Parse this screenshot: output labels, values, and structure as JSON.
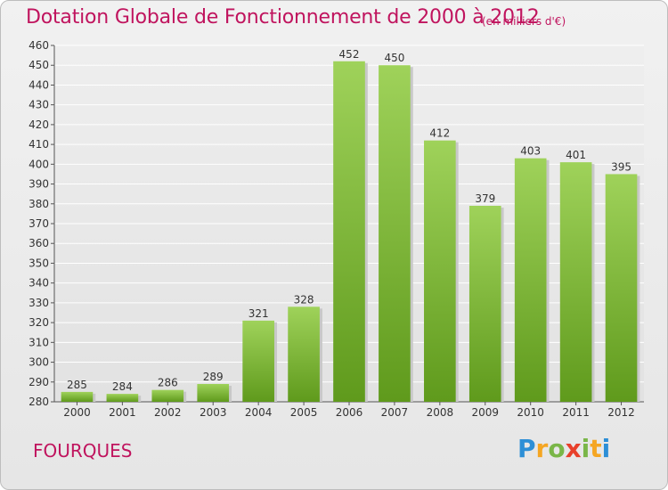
{
  "header": {
    "title": "Dotation Globale de Fonctionnement de 2000 à 2012",
    "subtitle": "(en milliers d'€)"
  },
  "footer": {
    "commune": "FOURQUES",
    "logo": "Proxiti"
  },
  "chart_data": {
    "type": "bar",
    "title": "Dotation Globale de Fonctionnement de 2000 à 2012",
    "subtitle": "(en milliers d'€)",
    "xlabel": "",
    "ylabel": "",
    "categories": [
      "2000",
      "2001",
      "2002",
      "2003",
      "2004",
      "2005",
      "2006",
      "2007",
      "2008",
      "2009",
      "2010",
      "2011",
      "2012"
    ],
    "values": [
      285,
      284,
      286,
      289,
      321,
      328,
      452,
      450,
      412,
      379,
      403,
      401,
      395
    ],
    "ylim": [
      280,
      460
    ],
    "yticks": [
      280,
      290,
      300,
      310,
      320,
      330,
      340,
      350,
      360,
      370,
      380,
      390,
      400,
      410,
      420,
      430,
      440,
      450,
      460
    ],
    "grid": true,
    "legend": "none",
    "colors": {
      "bar_top": "#9fd25a",
      "bar_bottom": "#5f9a1c",
      "grid": "#ffffff",
      "title": "#c0145e"
    }
  }
}
